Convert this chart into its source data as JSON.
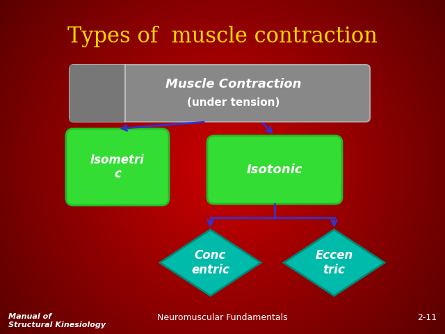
{
  "title": "Types of  muscle contraction",
  "title_color": "#FFD700",
  "title_fontsize": 22,
  "bg_color_center": "#CC0000",
  "bg_color_edge": "#5A0000",
  "footer_left_line1": "Manual of",
  "footer_left_line2": "Structural Kinesiology",
  "footer_center": "Neuromuscular Fundamentals",
  "footer_right": "2-11",
  "footer_color": "#FFFFFF",
  "footer_fontsize": 8,
  "box_muscle_text_line1": "Muscle Contraction",
  "box_muscle_text_line2": "(under tension)",
  "box_muscle_color": "#888888",
  "box_muscle_border": "#AAAAAA",
  "box_muscle_left_color": "#999999",
  "box_isometric_text": "Isometri\nc",
  "box_isotonic_text": "Isotonic",
  "box_green_color": "#33DD33",
  "box_green_border": "#22BB22",
  "diamond_concentric_text": "Conc\nentric",
  "diamond_eccentric_text": "Eccen\ntric",
  "diamond_color": "#00BBAA",
  "diamond_border": "#008877",
  "arrow_color": "#3333CC",
  "arrow_lw": 2.0
}
